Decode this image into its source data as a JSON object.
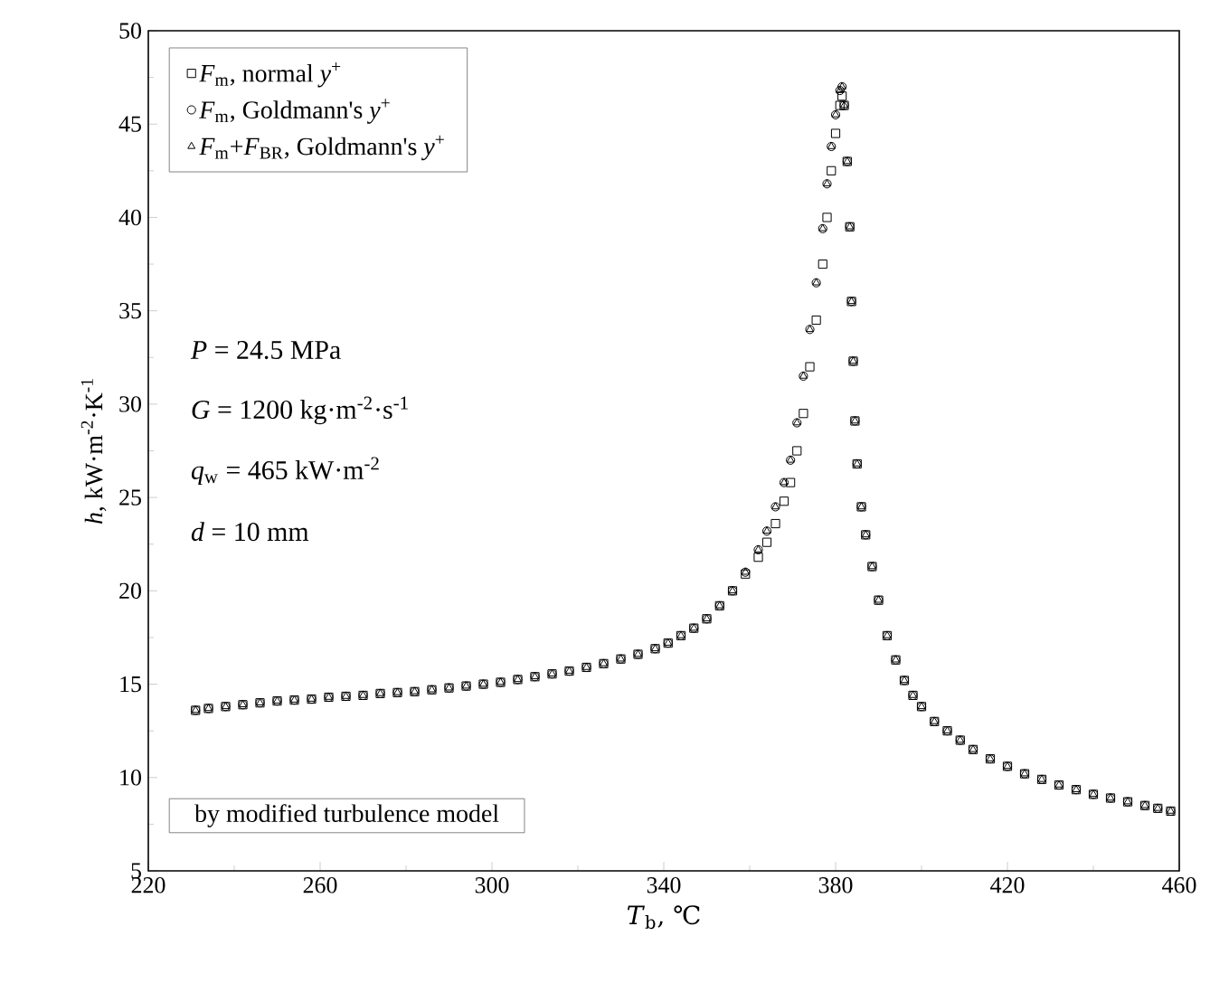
{
  "chart_data": {
    "type": "scatter",
    "xlabel": "*T*$_{b}$, ℃",
    "ylabel": "*h*, kW·m$^{-2}$·K$^{-1}$",
    "x": [
      231,
      234,
      238,
      242,
      246,
      250,
      254,
      258,
      262,
      266,
      270,
      274,
      278,
      282,
      286,
      290,
      294,
      298,
      302,
      306,
      310,
      314,
      318,
      322,
      326,
      330,
      334,
      338,
      341,
      344,
      347,
      350,
      353,
      356,
      359,
      362,
      364,
      366,
      368,
      369.5,
      371,
      372.5,
      374,
      375.5,
      377,
      378,
      379,
      380,
      381,
      381.5,
      382,
      382.7,
      383.3,
      383.7,
      384.1,
      384.5,
      385,
      386,
      387,
      388.5,
      390,
      392,
      394,
      396,
      398,
      400,
      403,
      406,
      409,
      412,
      416,
      420,
      424,
      428,
      432,
      436,
      440,
      444,
      448,
      452,
      455,
      458
    ],
    "series": [
      {
        "name": "*F*$_{m}$, normal *y*$^{+}$",
        "marker": "square",
        "color": "#000000",
        "values": [
          13.6,
          13.7,
          13.8,
          13.9,
          14.0,
          14.1,
          14.15,
          14.2,
          14.3,
          14.35,
          14.4,
          14.5,
          14.55,
          14.6,
          14.7,
          14.8,
          14.9,
          15.0,
          15.1,
          15.25,
          15.4,
          15.55,
          15.7,
          15.9,
          16.1,
          16.35,
          16.6,
          16.9,
          17.2,
          17.6,
          18.0,
          18.5,
          19.2,
          20.0,
          20.9,
          21.8,
          22.6,
          23.6,
          24.8,
          25.8,
          27.5,
          29.5,
          32.0,
          34.5,
          37.5,
          40.0,
          42.5,
          44.5,
          46.0,
          46.5,
          46.0,
          43.0,
          39.5,
          35.5,
          32.3,
          29.1,
          26.8,
          24.5,
          23.0,
          21.3,
          19.5,
          17.6,
          16.3,
          15.2,
          14.4,
          13.8,
          13.0,
          12.5,
          12.0,
          11.5,
          11.0,
          10.6,
          10.2,
          9.9,
          9.6,
          9.35,
          9.1,
          8.9,
          8.7,
          8.5,
          8.35,
          8.2
        ]
      },
      {
        "name": "*F*$_{m}$, Goldmann's *y*$^{+}$",
        "marker": "circle",
        "color": "#000000",
        "values": [
          13.6,
          13.7,
          13.8,
          13.9,
          14.0,
          14.1,
          14.15,
          14.2,
          14.3,
          14.35,
          14.4,
          14.5,
          14.55,
          14.6,
          14.7,
          14.8,
          14.9,
          15.0,
          15.1,
          15.25,
          15.4,
          15.55,
          15.7,
          15.9,
          16.1,
          16.35,
          16.6,
          16.9,
          17.2,
          17.6,
          18.0,
          18.5,
          19.2,
          20.0,
          21.0,
          22.2,
          23.2,
          24.5,
          25.8,
          27.0,
          29.0,
          31.5,
          34.0,
          36.5,
          39.4,
          41.8,
          43.8,
          45.5,
          46.8,
          47.0,
          46.0,
          43.0,
          39.5,
          35.5,
          32.3,
          29.1,
          26.8,
          24.5,
          23.0,
          21.3,
          19.5,
          17.6,
          16.3,
          15.2,
          14.4,
          13.8,
          13.0,
          12.5,
          12.0,
          11.5,
          11.0,
          10.6,
          10.2,
          9.9,
          9.6,
          9.35,
          9.1,
          8.9,
          8.7,
          8.5,
          8.35,
          8.2
        ]
      },
      {
        "name": "*F*$_{m}$+*F*$_{BR}$, Goldmann's *y*$^{+}$",
        "marker": "triangle",
        "color": "#000000",
        "values": [
          13.6,
          13.7,
          13.8,
          13.9,
          14.0,
          14.1,
          14.15,
          14.2,
          14.3,
          14.35,
          14.4,
          14.5,
          14.55,
          14.6,
          14.7,
          14.8,
          14.9,
          15.0,
          15.1,
          15.25,
          15.4,
          15.55,
          15.7,
          15.9,
          16.1,
          16.35,
          16.6,
          16.9,
          17.2,
          17.6,
          18.0,
          18.5,
          19.2,
          20.0,
          21.0,
          22.2,
          23.2,
          24.5,
          25.8,
          27.0,
          29.0,
          31.5,
          34.0,
          36.5,
          39.4,
          41.8,
          43.8,
          45.5,
          46.8,
          47.0,
          46.0,
          43.0,
          39.5,
          35.5,
          32.3,
          29.1,
          26.8,
          24.5,
          23.0,
          21.3,
          19.5,
          17.6,
          16.3,
          15.2,
          14.4,
          13.8,
          13.0,
          12.5,
          12.0,
          11.5,
          11.0,
          10.6,
          10.2,
          9.9,
          9.6,
          9.35,
          9.1,
          8.9,
          8.7,
          8.5,
          8.35,
          8.2
        ]
      }
    ],
    "xlim": [
      220,
      460
    ],
    "xticks": [
      220,
      260,
      300,
      340,
      380,
      420,
      460
    ],
    "ylim": [
      5,
      50
    ],
    "yticks": [
      5,
      10,
      15,
      20,
      25,
      30,
      35,
      40,
      45,
      50
    ],
    "grid": false,
    "legend": "top left",
    "annotations": [
      "*P* = 24.5 MPa",
      "*G* = 1200 kg·m$^{-2}$·s$^{-1}$",
      "*q*$_{w}$ = 465 kW·m$^{-2}$",
      "*d* = 10 mm",
      "by modified turbulence model"
    ]
  }
}
